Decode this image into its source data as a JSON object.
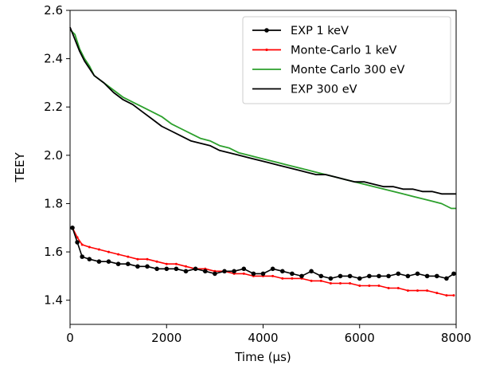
{
  "chart_data": {
    "type": "line",
    "xlabel": "Time (µs)",
    "ylabel": "TEEY",
    "xlim": [
      0,
      8000
    ],
    "ylim": [
      1.3,
      2.6
    ],
    "xticks": [
      0,
      2000,
      4000,
      6000,
      8000
    ],
    "yticks": [
      1.4,
      1.6,
      1.8,
      2.0,
      2.2,
      2.4,
      2.6
    ],
    "xtick_labels": [
      "0",
      "2000",
      "4000",
      "6000",
      "8000"
    ],
    "ytick_labels": [
      "1.4",
      "1.6",
      "1.8",
      "2.0",
      "2.2",
      "2.4",
      "2.6"
    ],
    "grid": false,
    "legend_position": "top-right",
    "series": [
      {
        "name": "EXP 1 keV",
        "color": "#000000",
        "marker": "circle",
        "x": [
          50,
          150,
          250,
          400,
          600,
          800,
          1000,
          1200,
          1400,
          1600,
          1800,
          2000,
          2200,
          2400,
          2600,
          2800,
          3000,
          3200,
          3400,
          3600,
          3800,
          4000,
          4200,
          4400,
          4600,
          4800,
          5000,
          5200,
          5400,
          5600,
          5800,
          6000,
          6200,
          6400,
          6600,
          6800,
          7000,
          7200,
          7400,
          7600,
          7800,
          7950
        ],
        "y": [
          1.7,
          1.64,
          1.58,
          1.57,
          1.56,
          1.56,
          1.55,
          1.55,
          1.54,
          1.54,
          1.53,
          1.53,
          1.53,
          1.52,
          1.53,
          1.52,
          1.51,
          1.52,
          1.52,
          1.53,
          1.51,
          1.51,
          1.53,
          1.52,
          1.51,
          1.5,
          1.52,
          1.5,
          1.49,
          1.5,
          1.5,
          1.49,
          1.5,
          1.5,
          1.5,
          1.51,
          1.5,
          1.51,
          1.5,
          1.5,
          1.49,
          1.51
        ]
      },
      {
        "name": "Monte-Carlo 1 keV",
        "color": "#ff0000",
        "marker": "small-dot",
        "x": [
          50,
          150,
          250,
          400,
          600,
          800,
          1000,
          1200,
          1400,
          1600,
          1800,
          2000,
          2200,
          2400,
          2600,
          2800,
          3000,
          3200,
          3400,
          3600,
          3800,
          4000,
          4200,
          4400,
          4600,
          4800,
          5000,
          5200,
          5400,
          5600,
          5800,
          6000,
          6200,
          6400,
          6600,
          6800,
          7000,
          7200,
          7400,
          7600,
          7800,
          7950
        ],
        "y": [
          1.7,
          1.66,
          1.63,
          1.62,
          1.61,
          1.6,
          1.59,
          1.58,
          1.57,
          1.57,
          1.56,
          1.55,
          1.55,
          1.54,
          1.53,
          1.53,
          1.52,
          1.52,
          1.51,
          1.51,
          1.5,
          1.5,
          1.5,
          1.49,
          1.49,
          1.49,
          1.48,
          1.48,
          1.47,
          1.47,
          1.47,
          1.46,
          1.46,
          1.46,
          1.45,
          1.45,
          1.44,
          1.44,
          1.44,
          1.43,
          1.42,
          1.42
        ]
      },
      {
        "name": "Monte Carlo 300 eV",
        "color": "#2ca02c",
        "marker": "none",
        "x": [
          0,
          100,
          200,
          300,
          400,
          500,
          700,
          900,
          1100,
          1300,
          1500,
          1700,
          1900,
          2100,
          2300,
          2500,
          2700,
          2900,
          3100,
          3300,
          3500,
          3700,
          3900,
          4100,
          4300,
          4500,
          4700,
          4900,
          5100,
          5300,
          5500,
          5700,
          5900,
          6100,
          6300,
          6500,
          6700,
          6900,
          7100,
          7300,
          7500,
          7700,
          7900,
          8000
        ],
        "y": [
          2.52,
          2.5,
          2.44,
          2.4,
          2.37,
          2.33,
          2.3,
          2.27,
          2.24,
          2.22,
          2.2,
          2.18,
          2.16,
          2.13,
          2.11,
          2.09,
          2.07,
          2.06,
          2.04,
          2.03,
          2.01,
          2.0,
          1.99,
          1.98,
          1.97,
          1.96,
          1.95,
          1.94,
          1.93,
          1.92,
          1.91,
          1.9,
          1.89,
          1.88,
          1.87,
          1.86,
          1.85,
          1.84,
          1.83,
          1.82,
          1.81,
          1.8,
          1.78,
          1.78
        ]
      },
      {
        "name": "EXP 300 eV",
        "color": "#000000",
        "marker": "none",
        "x": [
          0,
          100,
          200,
          300,
          400,
          500,
          700,
          900,
          1100,
          1300,
          1500,
          1700,
          1900,
          2100,
          2300,
          2500,
          2700,
          2900,
          3100,
          3300,
          3500,
          3700,
          3900,
          4100,
          4300,
          4500,
          4700,
          4900,
          5100,
          5300,
          5500,
          5700,
          5900,
          6100,
          6300,
          6500,
          6700,
          6900,
          7100,
          7300,
          7500,
          7700,
          7900,
          8000
        ],
        "y": [
          2.53,
          2.48,
          2.43,
          2.39,
          2.36,
          2.33,
          2.3,
          2.26,
          2.23,
          2.21,
          2.18,
          2.15,
          2.12,
          2.1,
          2.08,
          2.06,
          2.05,
          2.04,
          2.02,
          2.01,
          2.0,
          1.99,
          1.98,
          1.97,
          1.96,
          1.95,
          1.94,
          1.93,
          1.92,
          1.92,
          1.91,
          1.9,
          1.89,
          1.89,
          1.88,
          1.87,
          1.87,
          1.86,
          1.86,
          1.85,
          1.85,
          1.84,
          1.84,
          1.84
        ]
      }
    ]
  }
}
